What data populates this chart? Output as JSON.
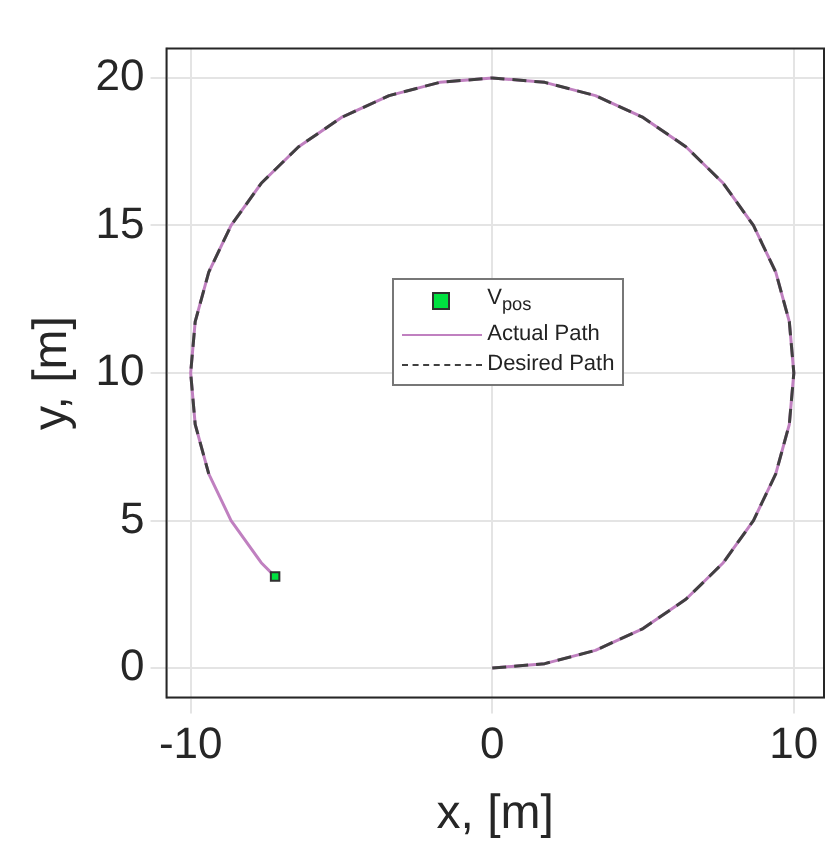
{
  "chart_data": {
    "type": "line",
    "xlabel": "x, [m]",
    "ylabel": "y, [m]",
    "xlim": [
      -10.8,
      11
    ],
    "ylim": [
      -1,
      21
    ],
    "xticks": [
      -10,
      0,
      10
    ],
    "yticks": [
      0,
      5,
      10,
      15,
      20
    ],
    "grid": true,
    "legend": "center",
    "series": [
      {
        "name": "V$_{pos}$",
        "type": "scatter",
        "color": "#00e040",
        "marker": "square",
        "x": [
          -7.2
        ],
        "values": [
          3.1
        ]
      },
      {
        "name": "Actual Path",
        "color": "#c080c0",
        "line_style": "solid",
        "x": [
          0,
          1.74,
          3.42,
          5,
          6.43,
          7.66,
          8.66,
          9.4,
          9.85,
          10,
          9.85,
          9.4,
          8.66,
          7.66,
          6.43,
          5,
          3.42,
          1.74,
          0,
          -1.74,
          -3.42,
          -5,
          -6.43,
          -7.66,
          -8.66,
          -9.4,
          -9.85,
          -10,
          -9.85,
          -9.4,
          -8.66,
          -7.66,
          -7.2
        ],
        "values": [
          0,
          0.15,
          0.6,
          1.34,
          2.34,
          3.57,
          5,
          6.58,
          8.26,
          10,
          11.74,
          13.42,
          15,
          16.43,
          17.66,
          18.66,
          19.4,
          19.85,
          20,
          19.85,
          19.4,
          18.66,
          17.66,
          16.43,
          15,
          13.42,
          11.74,
          10,
          8.26,
          6.58,
          5,
          3.57,
          3.1
        ]
      },
      {
        "name": "Desired Path",
        "color": "#404040",
        "line_style": "dashed",
        "x": [
          0,
          1.74,
          3.42,
          5,
          6.43,
          7.66,
          8.66,
          9.4,
          9.85,
          10,
          9.85,
          9.4,
          8.66,
          7.66,
          6.43,
          5,
          3.42,
          1.74,
          0,
          -1.74,
          -3.42,
          -5,
          -6.43,
          -7.66,
          -8.66,
          -9.4,
          -9.85,
          -10,
          -9.85,
          -9.4
        ],
        "values": [
          0,
          0.15,
          0.6,
          1.34,
          2.34,
          3.57,
          5,
          6.58,
          8.26,
          10,
          11.74,
          13.42,
          15,
          16.43,
          17.66,
          18.66,
          19.4,
          19.85,
          20,
          19.85,
          19.4,
          18.66,
          17.66,
          16.43,
          15,
          13.42,
          11.74,
          10,
          8.26,
          6.58
        ]
      }
    ]
  }
}
